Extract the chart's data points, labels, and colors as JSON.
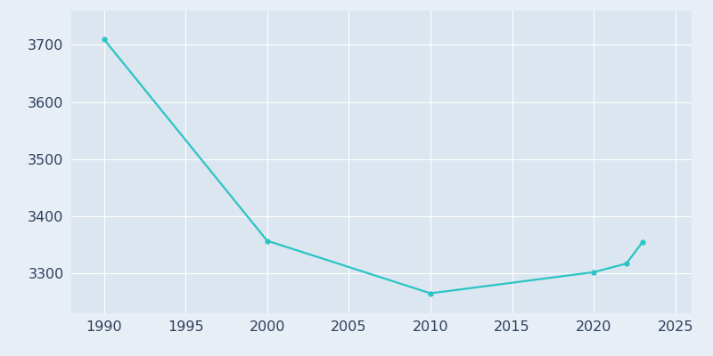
{
  "years": [
    1990,
    2000,
    2010,
    2020,
    2022,
    2023
  ],
  "population": [
    3710,
    3357,
    3265,
    3302,
    3317,
    3355
  ],
  "line_color": "#2bc4c4",
  "marker": "o",
  "marker_size": 3.5,
  "linewidth": 1.6,
  "fig_bg_color": "#e8eef6",
  "plot_bg_color": "#dce6f0",
  "grid_color": "#ffffff",
  "xlim": [
    1988,
    2026
  ],
  "ylim": [
    3230,
    3760
  ],
  "xticks": [
    1990,
    1995,
    2000,
    2005,
    2010,
    2015,
    2020,
    2025
  ],
  "yticks": [
    3300,
    3400,
    3500,
    3600,
    3700
  ],
  "tick_label_color": "#2e3f5c",
  "tick_fontsize": 11.5
}
